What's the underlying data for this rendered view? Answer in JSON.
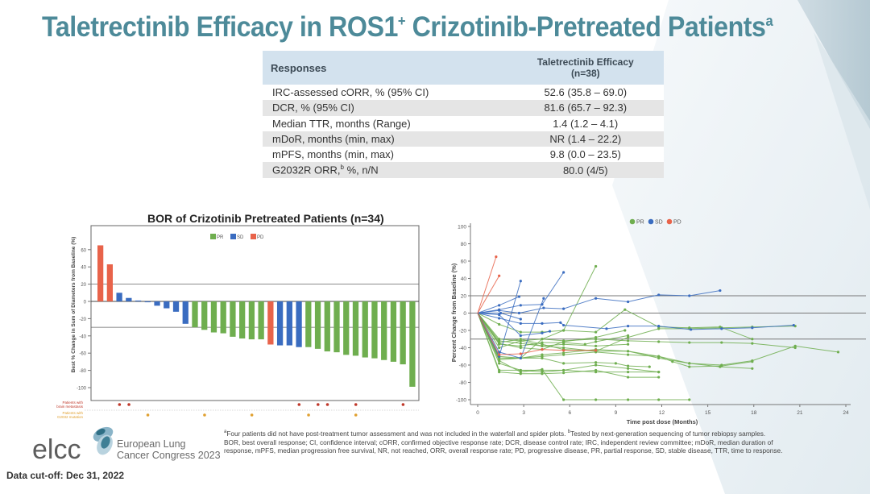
{
  "slide": {
    "title": "Taletrectinib Efficacy in ROS1",
    "title_sup1": "+",
    "title_rest": " Crizotinib-Pretreated Patients",
    "title_sup2": "a",
    "accent_color": "#4d8a99"
  },
  "table": {
    "header_col1": "Responses",
    "header_col2_line1": "Taletrectinib Efficacy",
    "header_col2_line2": "(n=38)",
    "rows": [
      {
        "label": "IRC-assessed cORR, % (95% CI)",
        "value": "52.6 (35.8 – 69.0)"
      },
      {
        "label": "DCR, % (95% CI)",
        "value": "81.6 (65.7 – 92.3)"
      },
      {
        "label": "Median TTR, months (Range)",
        "value": "1.4 (1.2 – 4.1)"
      },
      {
        "label": "mDoR, months (min, max)",
        "value": "NR (1.4 – 22.2)"
      },
      {
        "label": "mPFS, months (min, max)",
        "value": "9.8 (0.0 – 23.5)"
      },
      {
        "label": "G2032R ORR,",
        "label_sup": "b",
        "label_rest": " %, n/N",
        "value": "80.0 (4/5)"
      }
    ]
  },
  "chart_data": [
    {
      "type": "bar",
      "title": "BOR of Crizotinib Pretreated Patients (n=34)",
      "ylabel": "Best % Change in Sum of Diameters from Baseline (%)",
      "xlabel": "",
      "ylim": [
        -110,
        65
      ],
      "yticks": [
        60,
        40,
        20,
        0,
        -20,
        -40,
        -60,
        -80,
        -100
      ],
      "reference_lines": [
        20,
        -30
      ],
      "legend": [
        {
          "name": "PR",
          "color": "#6fae4f"
        },
        {
          "name": "SD",
          "color": "#3a6cc0"
        },
        {
          "name": "PD",
          "color": "#e8634a"
        }
      ],
      "legend_position": "top-center",
      "values": [
        65,
        43,
        10,
        4,
        1,
        -1,
        -5,
        -8,
        -12,
        -26,
        -30,
        -33,
        -36,
        -37,
        -41,
        -43,
        -44,
        -44,
        -50,
        -51,
        -51,
        -53,
        -53,
        -55,
        -58,
        -59,
        -62,
        -63,
        -65,
        -66,
        -68,
        -70,
        -73,
        -99
      ],
      "categories_response": [
        "PD",
        "PD",
        "SD",
        "SD",
        "SD",
        "SD",
        "SD",
        "SD",
        "SD",
        "SD",
        "PR",
        "PR",
        "PR",
        "PR",
        "PR",
        "PR",
        "PR",
        "PR",
        "PD",
        "SD",
        "SD",
        "SD",
        "PR",
        "PR",
        "PR",
        "PR",
        "PR",
        "PR",
        "PR",
        "PR",
        "PR",
        "PR",
        "PR",
        "PR"
      ],
      "marker_rows": [
        {
          "label_line1": "Patients with",
          "label_line2": "brain metastasis",
          "color": "#c0392b",
          "patient_indices": [
            3,
            4,
            22,
            24,
            25,
            28,
            33
          ]
        },
        {
          "label_line1": "Patients with",
          "label_line2": "G2032 mutation",
          "color": "#e0a030",
          "patient_indices": [
            6,
            12,
            17,
            23,
            28
          ]
        }
      ]
    },
    {
      "type": "line",
      "title": "",
      "xlabel": "Time post dose (Months)",
      "ylabel": "Percent Change from Baseline (%)",
      "xlim": [
        0,
        24
      ],
      "ylim": [
        -100,
        100
      ],
      "xticks": [
        0,
        3,
        6,
        9,
        12,
        15,
        18,
        21,
        24
      ],
      "yticks": [
        100,
        80,
        60,
        40,
        20,
        0,
        -20,
        -40,
        -60,
        -80,
        -100
      ],
      "reference_lines": [
        20,
        0,
        -30
      ],
      "legend": [
        {
          "name": "PR",
          "color": "#6fae4f"
        },
        {
          "name": "SD",
          "color": "#3a6cc0"
        },
        {
          "name": "PD",
          "color": "#e8634a"
        }
      ],
      "legend_position": "top-center",
      "series": [
        {
          "name": "PD",
          "x": [
            0,
            1.2
          ],
          "y": [
            0,
            65
          ]
        },
        {
          "name": "PD",
          "x": [
            0,
            1.4
          ],
          "y": [
            0,
            43
          ]
        },
        {
          "name": "PD",
          "x": [
            0,
            1.4,
            2.8,
            4.2,
            5.6,
            7.7
          ],
          "y": [
            0,
            -48,
            -47,
            -42,
            -43,
            -43
          ]
        },
        {
          "name": "SD",
          "x": [
            0,
            1.4,
            2.7,
            4.3,
            5.6,
            7.7,
            9.8,
            11.8,
            13.8,
            15.8
          ],
          "y": [
            0,
            3,
            0,
            6,
            5,
            17,
            13,
            21,
            20,
            26
          ]
        },
        {
          "name": "SD",
          "x": [
            0,
            1.4,
            2.8,
            4.2,
            5.6
          ],
          "y": [
            0,
            4,
            9,
            10,
            47
          ]
        },
        {
          "name": "SD",
          "x": [
            0,
            1.4,
            2.8
          ],
          "y": [
            0,
            -50,
            37
          ]
        },
        {
          "name": "SD",
          "x": [
            0,
            1.4,
            2.7
          ],
          "y": [
            0,
            9,
            19
          ]
        },
        {
          "name": "SD",
          "x": [
            0,
            1.4,
            2.8,
            4.2,
            5.4,
            5.6,
            8.4,
            9.8,
            11.8,
            13.9,
            15.9,
            17.9,
            20.6
          ],
          "y": [
            0,
            -6,
            -12,
            -12,
            -11,
            -14,
            -18,
            -15,
            -15,
            -19,
            -18,
            -17,
            -14
          ]
        },
        {
          "name": "SD",
          "x": [
            0,
            1.4,
            2.8,
            4.2,
            4.7
          ],
          "y": [
            0,
            -2,
            -26,
            -23,
            -21
          ]
        },
        {
          "name": "SD",
          "x": [
            0,
            1.4,
            2.8,
            4.3
          ],
          "y": [
            0,
            -45,
            -52,
            17
          ]
        },
        {
          "name": "SD",
          "x": [
            0,
            1.5,
            2.8
          ],
          "y": [
            0,
            0,
            -7
          ]
        },
        {
          "name": "PR",
          "x": [
            0,
            1.4,
            2.8,
            4.2,
            5.6,
            7.7
          ],
          "y": [
            0,
            -50,
            -52,
            -30,
            -20,
            54
          ]
        },
        {
          "name": "PR",
          "x": [
            0,
            1.4,
            2.8,
            4.2,
            5.6,
            7.7,
            9.6,
            11.8,
            13.8,
            15.8,
            17.9
          ],
          "y": [
            0,
            -13,
            -22,
            -22,
            -20,
            -22,
            4,
            -16,
            -17,
            -16,
            -30
          ]
        },
        {
          "name": "PR",
          "x": [
            0,
            1.4,
            2.8,
            4.2,
            5.6,
            7.7,
            9.8,
            11.8,
            13.8,
            15.9,
            17.9,
            20.7
          ],
          "y": [
            0,
            -30,
            -32,
            -30,
            -32,
            -30,
            -32,
            -33,
            -34,
            -34,
            -35,
            -40
          ]
        },
        {
          "name": "PR",
          "x": [
            0,
            1.4,
            2.8,
            4.2,
            5.6,
            7.7,
            9.8,
            11.8,
            13.8,
            15.9,
            17.9,
            20.7,
            23.5
          ],
          "y": [
            0,
            -32,
            -35,
            -38,
            -40,
            -44,
            -44,
            -50,
            -58,
            -60,
            -55,
            -38,
            -45
          ]
        },
        {
          "name": "PR",
          "x": [
            0,
            1.4,
            2.8,
            4.2,
            5.6,
            7.7,
            9.6
          ],
          "y": [
            0,
            -35,
            -40,
            -42,
            -33,
            -28,
            -20
          ]
        },
        {
          "name": "PR",
          "x": [
            0,
            1.4,
            2.8,
            4.2,
            5.6,
            7.7,
            9.8,
            11.8,
            13.8
          ],
          "y": [
            0,
            -55,
            -68,
            -65,
            -100,
            -100,
            -100,
            -100,
            -100
          ]
        },
        {
          "name": "PR",
          "x": [
            0,
            1.4,
            2.8,
            4.2,
            5.6,
            7.7,
            9.8,
            11.8
          ],
          "y": [
            0,
            -66,
            -66,
            -66,
            -66,
            -68,
            -68,
            -68
          ]
        },
        {
          "name": "PR",
          "x": [
            0,
            1.4,
            2.8,
            4.2,
            5.6,
            7.7,
            9.8,
            11.8
          ],
          "y": [
            0,
            -68,
            -70,
            -70,
            -69,
            -66,
            -74,
            -74
          ]
        },
        {
          "name": "PR",
          "x": [
            0,
            1.4,
            2.8,
            4.2,
            5.6,
            7.7,
            9.0,
            9.8,
            11.2
          ],
          "y": [
            0,
            -52,
            -52,
            -52,
            -58,
            -57,
            -58,
            -61,
            -62
          ]
        },
        {
          "name": "PR",
          "x": [
            0,
            1.4,
            2.8,
            4.2,
            5.6,
            7.7,
            9.8,
            11.8,
            12.7,
            13.8,
            15.9,
            17.9
          ],
          "y": [
            0,
            -52,
            -52,
            -50,
            -48,
            -45,
            -48,
            -50,
            -56,
            -62,
            -61,
            -56
          ]
        },
        {
          "name": "PR",
          "x": [
            0,
            1.4,
            2.8,
            4.2,
            5.6,
            7.7,
            9.8,
            11.8,
            13.8,
            15.8,
            17.9
          ],
          "y": [
            0,
            -54,
            -52,
            -48,
            -46,
            -42,
            -44,
            -52,
            -58,
            -62,
            -64
          ]
        },
        {
          "name": "PR",
          "x": [
            0,
            1.4,
            2.8,
            4.2,
            5.6,
            7.0,
            7.7,
            9.8
          ],
          "y": [
            0,
            -36,
            -38,
            -34,
            -34,
            -36,
            -33,
            -26
          ]
        },
        {
          "name": "PR",
          "x": [
            0,
            1.4,
            2.8,
            4.2,
            5.6,
            7.7,
            9.8
          ],
          "y": [
            0,
            -40,
            -32,
            -38,
            -36,
            -38,
            -36
          ]
        },
        {
          "name": "PR",
          "x": [
            0,
            1.4,
            2.8,
            4.2,
            5.6,
            7.7,
            9.8,
            11.8
          ],
          "y": [
            0,
            -58,
            -66,
            -68,
            -66,
            -60,
            -64,
            -68
          ]
        },
        {
          "name": "PR",
          "x": [
            0,
            1.4,
            2.8,
            4.2,
            5.6,
            7.7,
            9.8,
            11.8,
            13.8,
            15.9,
            17.9,
            20.7
          ],
          "y": [
            0,
            -34,
            -30,
            -36,
            -42,
            -44,
            -28,
            -18,
            -18,
            -17,
            -16,
            -15
          ]
        }
      ]
    }
  ],
  "footnote": {
    "line1_sup": "a",
    "line1": "Four patients did not have post-treatment tumor assessment and was not included in the waterfall and spider plots.",
    "line1_sup2": "b",
    "line1_rest": "Tested by next-generation sequencing of tumor rebiopsy samples.",
    "line2": "BOR, best overall response; CI, confidence interval; cORR, confirmed objective response rate; DCR, disease control rate; IRC, independent review committee; mDoR, median duration of",
    "line3": "response, mPFS, median progression free survival, NR, not reached, ORR, overall response rate; PD, progressive disease, PR, partial response, SD, stable disease, TTR, time to response."
  },
  "logo": {
    "mark": "elcc",
    "line1": "European Lung",
    "line2": "Cancer Congress 2023"
  },
  "cutoff": "Data cut-off: Dec 31, 2022"
}
